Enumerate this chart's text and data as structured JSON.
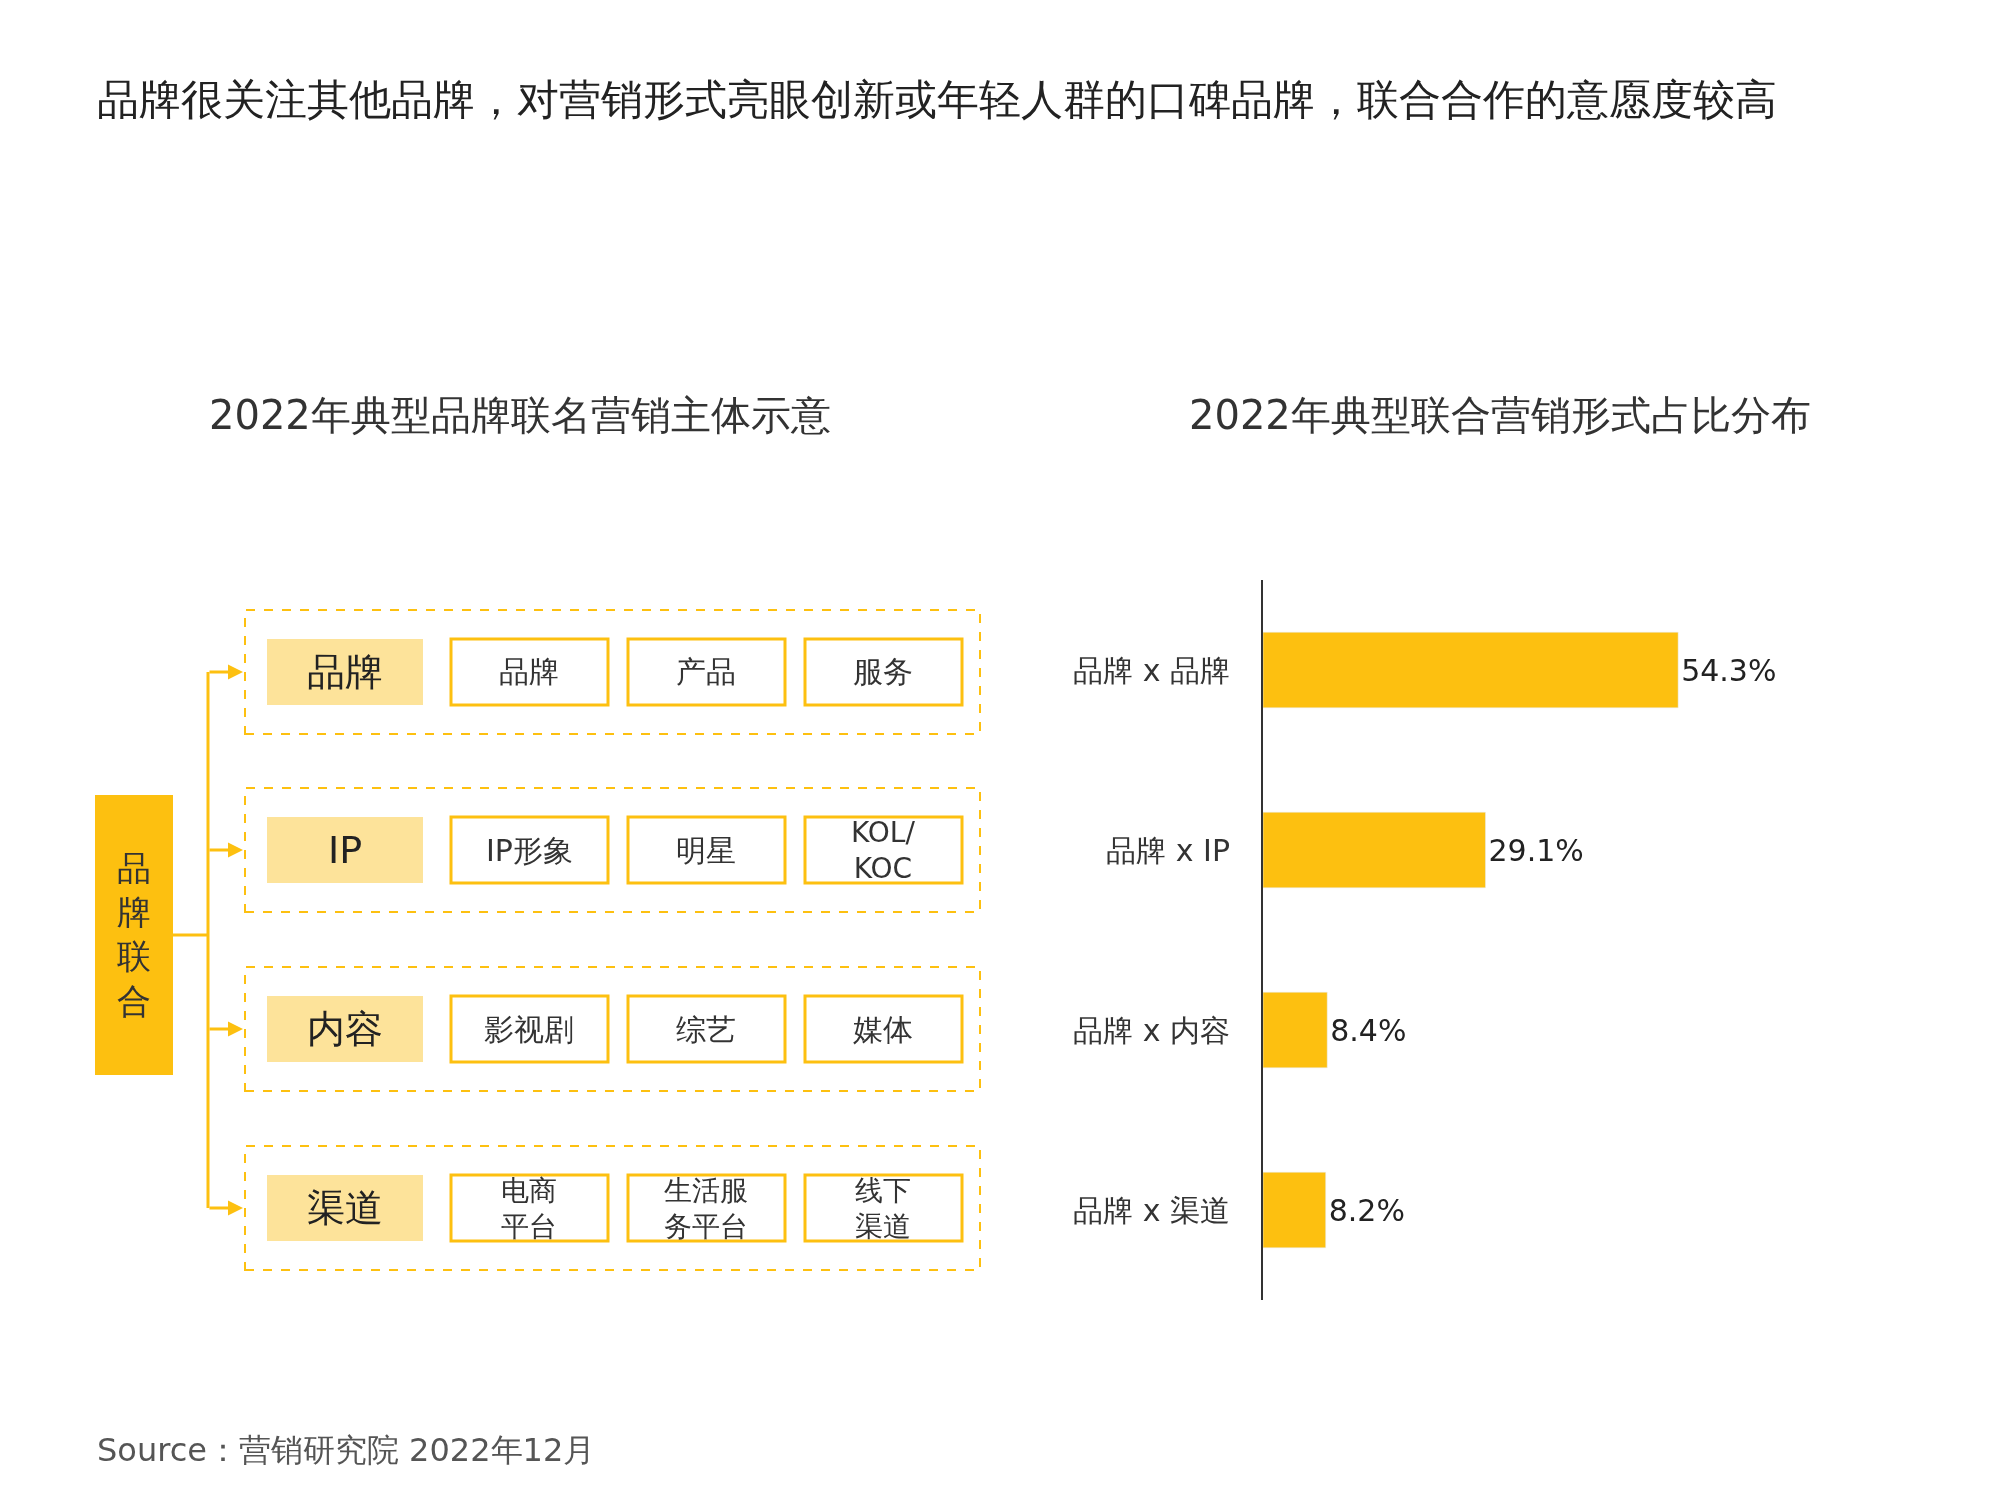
{
  "chart_data": [
    {
      "type": "other",
      "title": "品牌很关注其他品牌，对营销形式亮眼创新或年轻人群的口碑品牌，联合合作的意愿度较高",
      "subtitle": "2022年典型品牌联名营销主体示意",
      "color": "#fdc010",
      "categories": [
        "品牌",
        "IP",
        "内容",
        "渠道"
      ],
      "annotations": [
        "品牌联合",
        "品牌",
        "产品",
        "服务",
        "IP形象",
        "明星",
        "KOL/KOC",
        "影视剧",
        "综艺",
        "媒体",
        "电商平台",
        "生活服务平台",
        "线下渠道"
      ]
    },
    {
      "type": "bar",
      "orientation": "horizontal",
      "title": "2022年典型联合营销形式占比分布",
      "color": "#fdc010",
      "tick_labels": "y",
      "categories": [
        "品牌 x 品牌",
        "品牌 x IP",
        "品牌 x 内容",
        "品牌 x 渠道"
      ],
      "values": [
        54.3,
        29.1,
        8.4,
        8.2
      ],
      "value_labels": [
        "54.3%",
        "29.1%",
        "8.4%",
        "8.2%"
      ],
      "annotations": [
        "Source：营销研究院 2022年12月"
      ]
    }
  ]
}
